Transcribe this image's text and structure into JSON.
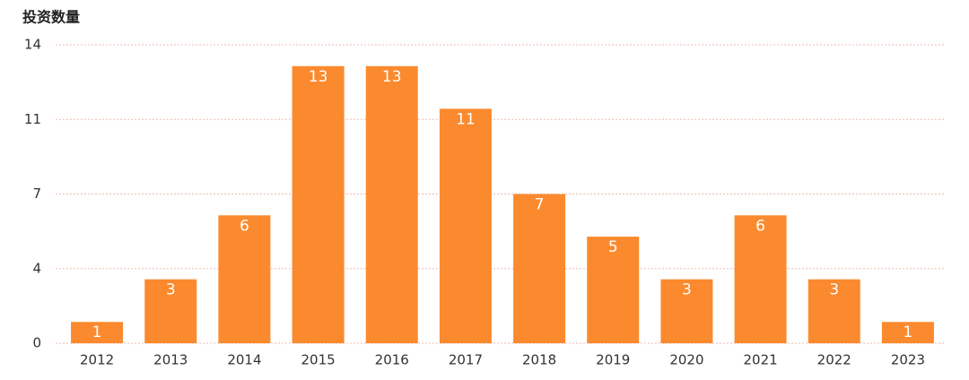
{
  "chart_data": {
    "type": "bar",
    "title": "投资数量",
    "categories": [
      "2012",
      "2013",
      "2014",
      "2015",
      "2016",
      "2017",
      "2018",
      "2019",
      "2020",
      "2021",
      "2022",
      "2023"
    ],
    "values": [
      1,
      3,
      6,
      13,
      13,
      11,
      7,
      5,
      3,
      6,
      3,
      1
    ],
    "color": "#fb8a2e",
    "ylim": [
      0,
      14
    ],
    "yticks": [
      0,
      {
        "value": 3.5,
        "label": "4"
      },
      7,
      {
        "value": 10.5,
        "label": "11"
      },
      14
    ],
    "grid": true
  }
}
